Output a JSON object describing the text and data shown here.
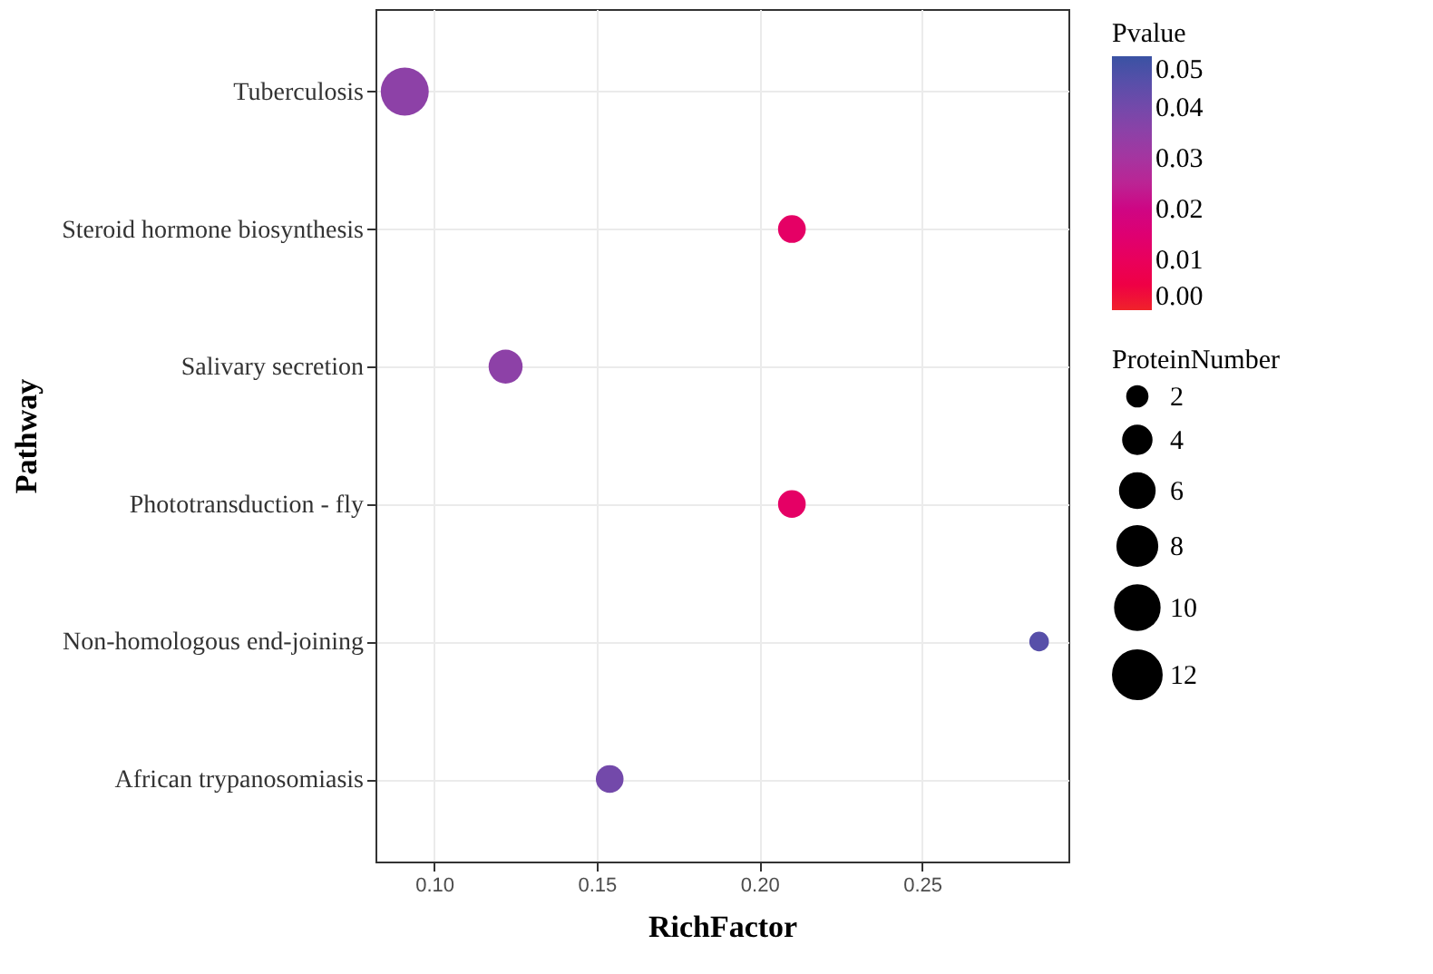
{
  "chart_data": {
    "type": "bubble",
    "orientation": "horizontal",
    "xlabel": "RichFactor",
    "ylabel": "Pathway",
    "legend_title": "ProteinNumber",
    "clabel": "Pvalue",
    "categories": [
      "Tuberculosis",
      "Steroid hormone biosynthesis",
      "Salivary secretion",
      "Phototransduction - fly",
      "Non-homologous end-joining",
      "African trypanosomiasis"
    ],
    "values": [
      0.091,
      0.21,
      0.122,
      0.21,
      0.286,
      0.154
    ],
    "sizes": [
      12,
      4,
      6,
      4,
      2,
      4
    ],
    "cvalues": [
      0.035,
      0.012,
      0.035,
      0.012,
      0.045,
      0.04
    ],
    "size_legend": [
      2,
      4,
      6,
      8,
      10,
      12
    ],
    "clim": [
      0,
      0.05
    ],
    "cticks": [
      {
        "value": 0,
        "label": "0.00"
      },
      0.01,
      0.02,
      0.03,
      0.04,
      0.05
    ],
    "xlim": [
      0.082,
      0.295
    ],
    "xticks": [
      {
        "value": 0.1,
        "label": "0.10"
      },
      0.15,
      {
        "value": 0.2,
        "label": "0.20"
      },
      0.25
    ],
    "grid": true,
    "marker": "circle"
  }
}
